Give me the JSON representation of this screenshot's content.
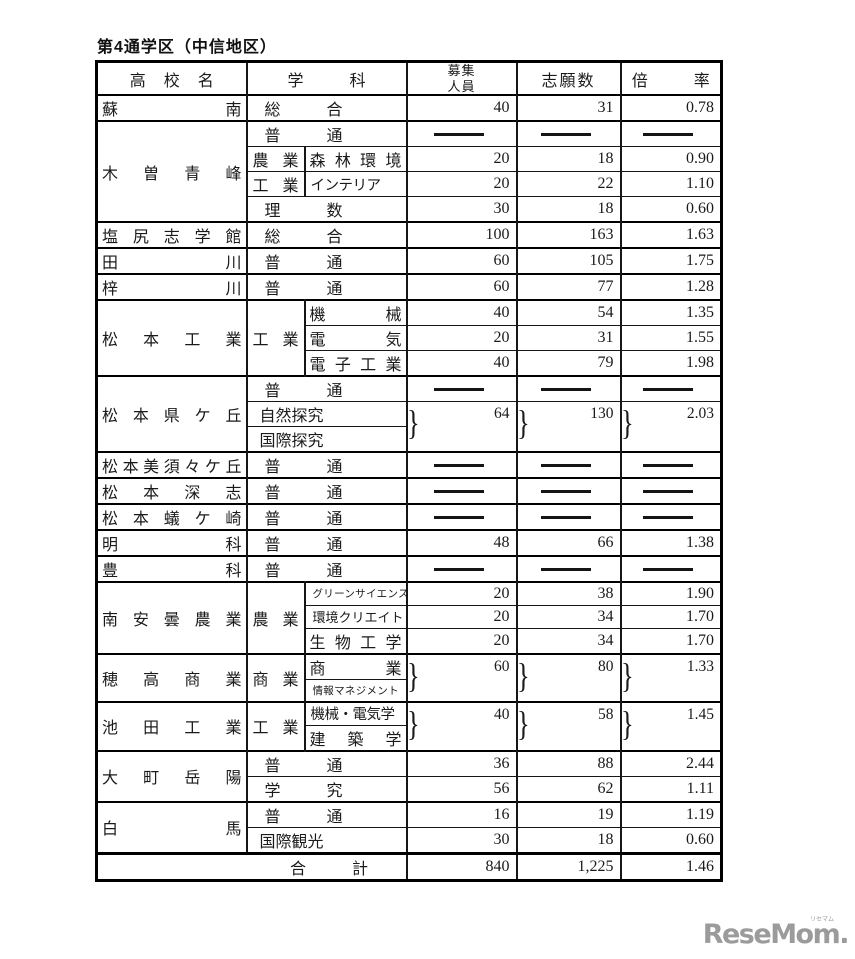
{
  "page": {
    "title": "第4通学区（中信地区）",
    "logo": {
      "text": "ReseMom.",
      "ruby": "リセマム"
    }
  },
  "table": {
    "headers": {
      "school": "高校名",
      "department": "学科",
      "capacity_line1": "募集",
      "capacity_line2": "人員",
      "applicants": "志願数",
      "ratio": "倍率"
    },
    "groups": [
      {
        "school": "蘇南",
        "rows": [
          {
            "dept": "総合",
            "cap": "40",
            "app": "31",
            "ratio": "0.78"
          }
        ]
      },
      {
        "school": "木曽青峰",
        "rows": [
          {
            "dept": "普通",
            "dash": true
          },
          {
            "cat": "農業",
            "name": "森林環境",
            "cap": "20",
            "app": "18",
            "ratio": "0.90"
          },
          {
            "cat": "工業",
            "name": "インテリア",
            "cap": "20",
            "app": "22",
            "ratio": "1.10"
          },
          {
            "dept": "理数",
            "cap": "30",
            "app": "18",
            "ratio": "0.60"
          }
        ]
      },
      {
        "school": "塩尻志学館",
        "rows": [
          {
            "dept": "総合",
            "cap": "100",
            "app": "163",
            "ratio": "1.63"
          }
        ]
      },
      {
        "school": "田川",
        "rows": [
          {
            "dept": "普通",
            "cap": "60",
            "app": "105",
            "ratio": "1.75"
          }
        ]
      },
      {
        "school": "梓川",
        "rows": [
          {
            "dept": "普通",
            "cap": "60",
            "app": "77",
            "ratio": "1.28"
          }
        ]
      },
      {
        "school": "松本工業",
        "cat": "工業",
        "rows": [
          {
            "name": "機械",
            "cap": "40",
            "app": "54",
            "ratio": "1.35"
          },
          {
            "name": "電気",
            "cap": "20",
            "app": "31",
            "ratio": "1.55"
          },
          {
            "name": "電子工業",
            "cap": "40",
            "app": "79",
            "ratio": "1.98"
          }
        ]
      },
      {
        "school": "松本県ケ丘",
        "rows": [
          {
            "dept": "普通",
            "dash": true
          },
          {
            "dept": "自然探究",
            "merge": {
              "span": 2,
              "cap": "64",
              "app": "130",
              "ratio": "2.03"
            }
          },
          {
            "dept": "国際探究"
          }
        ]
      },
      {
        "school": "松本美須々ケ丘",
        "rows": [
          {
            "dept": "普通",
            "dash": true
          }
        ]
      },
      {
        "school": "松本深志",
        "rows": [
          {
            "dept": "普通",
            "dash": true
          }
        ]
      },
      {
        "school": "松本蟻ケ崎",
        "rows": [
          {
            "dept": "普通",
            "dash": true
          }
        ]
      },
      {
        "school": "明科",
        "rows": [
          {
            "dept": "普通",
            "cap": "48",
            "app": "66",
            "ratio": "1.38"
          }
        ]
      },
      {
        "school": "豊科",
        "rows": [
          {
            "dept": "普通",
            "dash": true
          }
        ]
      },
      {
        "school": "南安曇農業",
        "cat": "農業",
        "rows": [
          {
            "name": "グリーンサイエンス",
            "small": true,
            "cap": "20",
            "app": "38",
            "ratio": "1.90"
          },
          {
            "name": "環境クリエイト",
            "small": true,
            "cap": "20",
            "app": "34",
            "ratio": "1.70"
          },
          {
            "name": "生物工学",
            "cap": "20",
            "app": "34",
            "ratio": "1.70"
          }
        ]
      },
      {
        "school": "穂高商業",
        "cat": "商業",
        "rows": [
          {
            "name": "商業",
            "merge": {
              "span": 2,
              "cap": "60",
              "app": "80",
              "ratio": "1.33"
            }
          },
          {
            "name": "情報マネジメント",
            "small": true
          }
        ]
      },
      {
        "school": "池田工業",
        "cat": "工業",
        "rows": [
          {
            "name": "機械・電気学",
            "merge": {
              "span": 2,
              "cap": "40",
              "app": "58",
              "ratio": "1.45"
            }
          },
          {
            "name": "建築学"
          }
        ]
      },
      {
        "school": "大町岳陽",
        "rows": [
          {
            "dept": "普通",
            "cap": "36",
            "app": "88",
            "ratio": "2.44"
          },
          {
            "dept": "学究",
            "cap": "56",
            "app": "62",
            "ratio": "1.11"
          }
        ]
      },
      {
        "school": "白馬",
        "rows": [
          {
            "dept": "普通",
            "cap": "16",
            "app": "19",
            "ratio": "1.19"
          },
          {
            "dept": "国際観光",
            "cap": "30",
            "app": "18",
            "ratio": "0.60"
          }
        ]
      }
    ],
    "total": {
      "label": "合計",
      "cap": "840",
      "app": "1,225",
      "ratio": "1.46"
    }
  }
}
